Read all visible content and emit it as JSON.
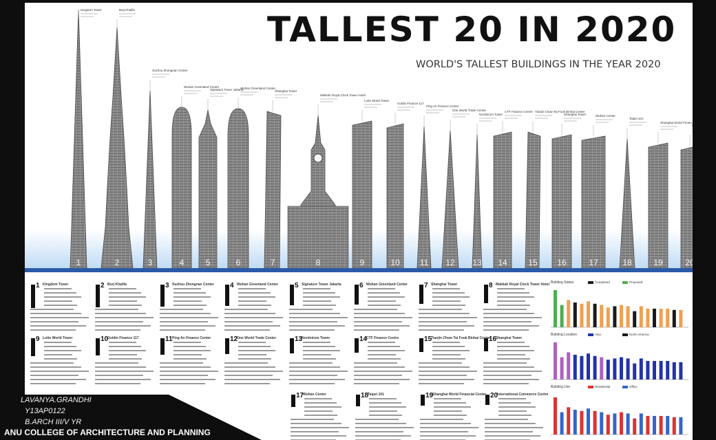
{
  "poster": {
    "title": "TALLEST 20 IN 2020",
    "subtitle": "WORLD'S TALLEST BUILDINGS IN THE YEAR 2020"
  },
  "buildings": [
    {
      "rank": "1",
      "name": "Kingdom Tower"
    },
    {
      "rank": "2",
      "name": "Burj Khalifa"
    },
    {
      "rank": "3",
      "name": "Suzhou Zhongnan Center"
    },
    {
      "rank": "4",
      "name": "Wuhan Greenland Center"
    },
    {
      "rank": "5",
      "name": "Signature Tower Jakarta"
    },
    {
      "rank": "6",
      "name": "Wuhan Greenland Center"
    },
    {
      "rank": "7",
      "name": "Shanghai Tower"
    },
    {
      "rank": "8",
      "name": "Makkah Royal Clock Tower Hotel"
    },
    {
      "rank": "9",
      "name": "Lotte World Tower"
    },
    {
      "rank": "10",
      "name": "Goldin Finance 117"
    },
    {
      "rank": "11",
      "name": "Ping An Finance Center"
    },
    {
      "rank": "12",
      "name": "One World Trade Center"
    },
    {
      "rank": "13",
      "name": "Nordstrom Tower"
    },
    {
      "rank": "14",
      "name": "CTF Finance Centre"
    },
    {
      "rank": "15",
      "name": "Tianjin Chow Tai Fook Binhai Center"
    },
    {
      "rank": "16",
      "name": "Shanghai Tower"
    },
    {
      "rank": "17",
      "name": "Wuhan Center"
    },
    {
      "rank": "18",
      "name": "Taipei 101"
    },
    {
      "rank": "19",
      "name": "Shanghai World Financial Center"
    },
    {
      "rank": "20",
      "name": "International Commerce Centre"
    }
  ],
  "charts": [
    {
      "label": "Building Status",
      "legend": [
        "Completed",
        "Proposed"
      ],
      "colors": [
        "#1a1a1a",
        "#f0a050",
        "#4caf50"
      ]
    },
    {
      "label": "Building Location",
      "legend": [
        "Asia",
        "North America"
      ],
      "colors": [
        "#2233aa",
        "#b060c0",
        "#1a1a1a"
      ]
    },
    {
      "label": "Building Use",
      "legend": [
        "Residential",
        "Office"
      ],
      "colors": [
        "#dd3333",
        "#3366cc"
      ]
    }
  ],
  "credits": {
    "author": "LAVANYA.GRANDHI",
    "roll": "Y13AP0122",
    "course": "B.ARCH III/V YR",
    "college": "ANU COLLEGE OF ARCHITECTURE AND PLANNING"
  },
  "colors": {
    "poster_bg": "#ffffff",
    "frame": "#0e0e0e",
    "sky": "#cfe3f7",
    "tower": "#7d7d7d"
  }
}
